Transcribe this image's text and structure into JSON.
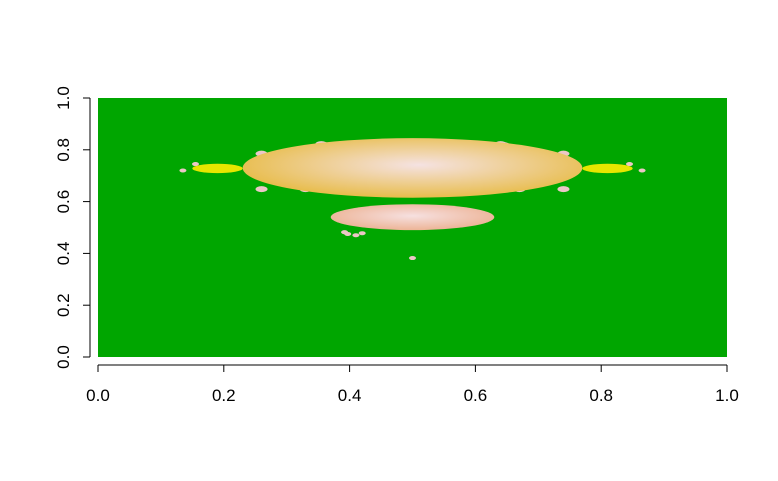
{
  "chart_data": {
    "type": "heatmap",
    "title": "",
    "xlabel": "",
    "ylabel": "",
    "xlim": [
      0,
      1
    ],
    "ylim": [
      0,
      1
    ],
    "x_ticks": [
      "0.0",
      "0.2",
      "0.4",
      "0.6",
      "0.8",
      "1.0"
    ],
    "y_ticks": [
      "0.0",
      "0.2",
      "0.4",
      "0.6",
      "0.8",
      "1.0"
    ],
    "grid": false,
    "legend": "none",
    "colors": {
      "background": "#00a600",
      "main_body_edge": "#e8bd4c",
      "main_body_center": "#f5e2e2",
      "bulb_edge": "#ecb090",
      "bulb_center": "#f6e0e0",
      "side_lobes": "#e6e600",
      "specks": "#ecc7c7"
    },
    "regions": [
      {
        "name": "main-cardioid",
        "cx": 0.5,
        "cy": 0.73,
        "rx": 0.27,
        "ry": 0.115
      },
      {
        "name": "lower-bulb",
        "cx": 0.5,
        "cy": 0.54,
        "rx": 0.13,
        "ry": 0.05
      },
      {
        "name": "left-lobe",
        "cx": 0.19,
        "cy": 0.728,
        "rx": 0.04,
        "ry": 0.018
      },
      {
        "name": "right-lobe",
        "cx": 0.81,
        "cy": 0.728,
        "rx": 0.04,
        "ry": 0.018
      }
    ]
  }
}
